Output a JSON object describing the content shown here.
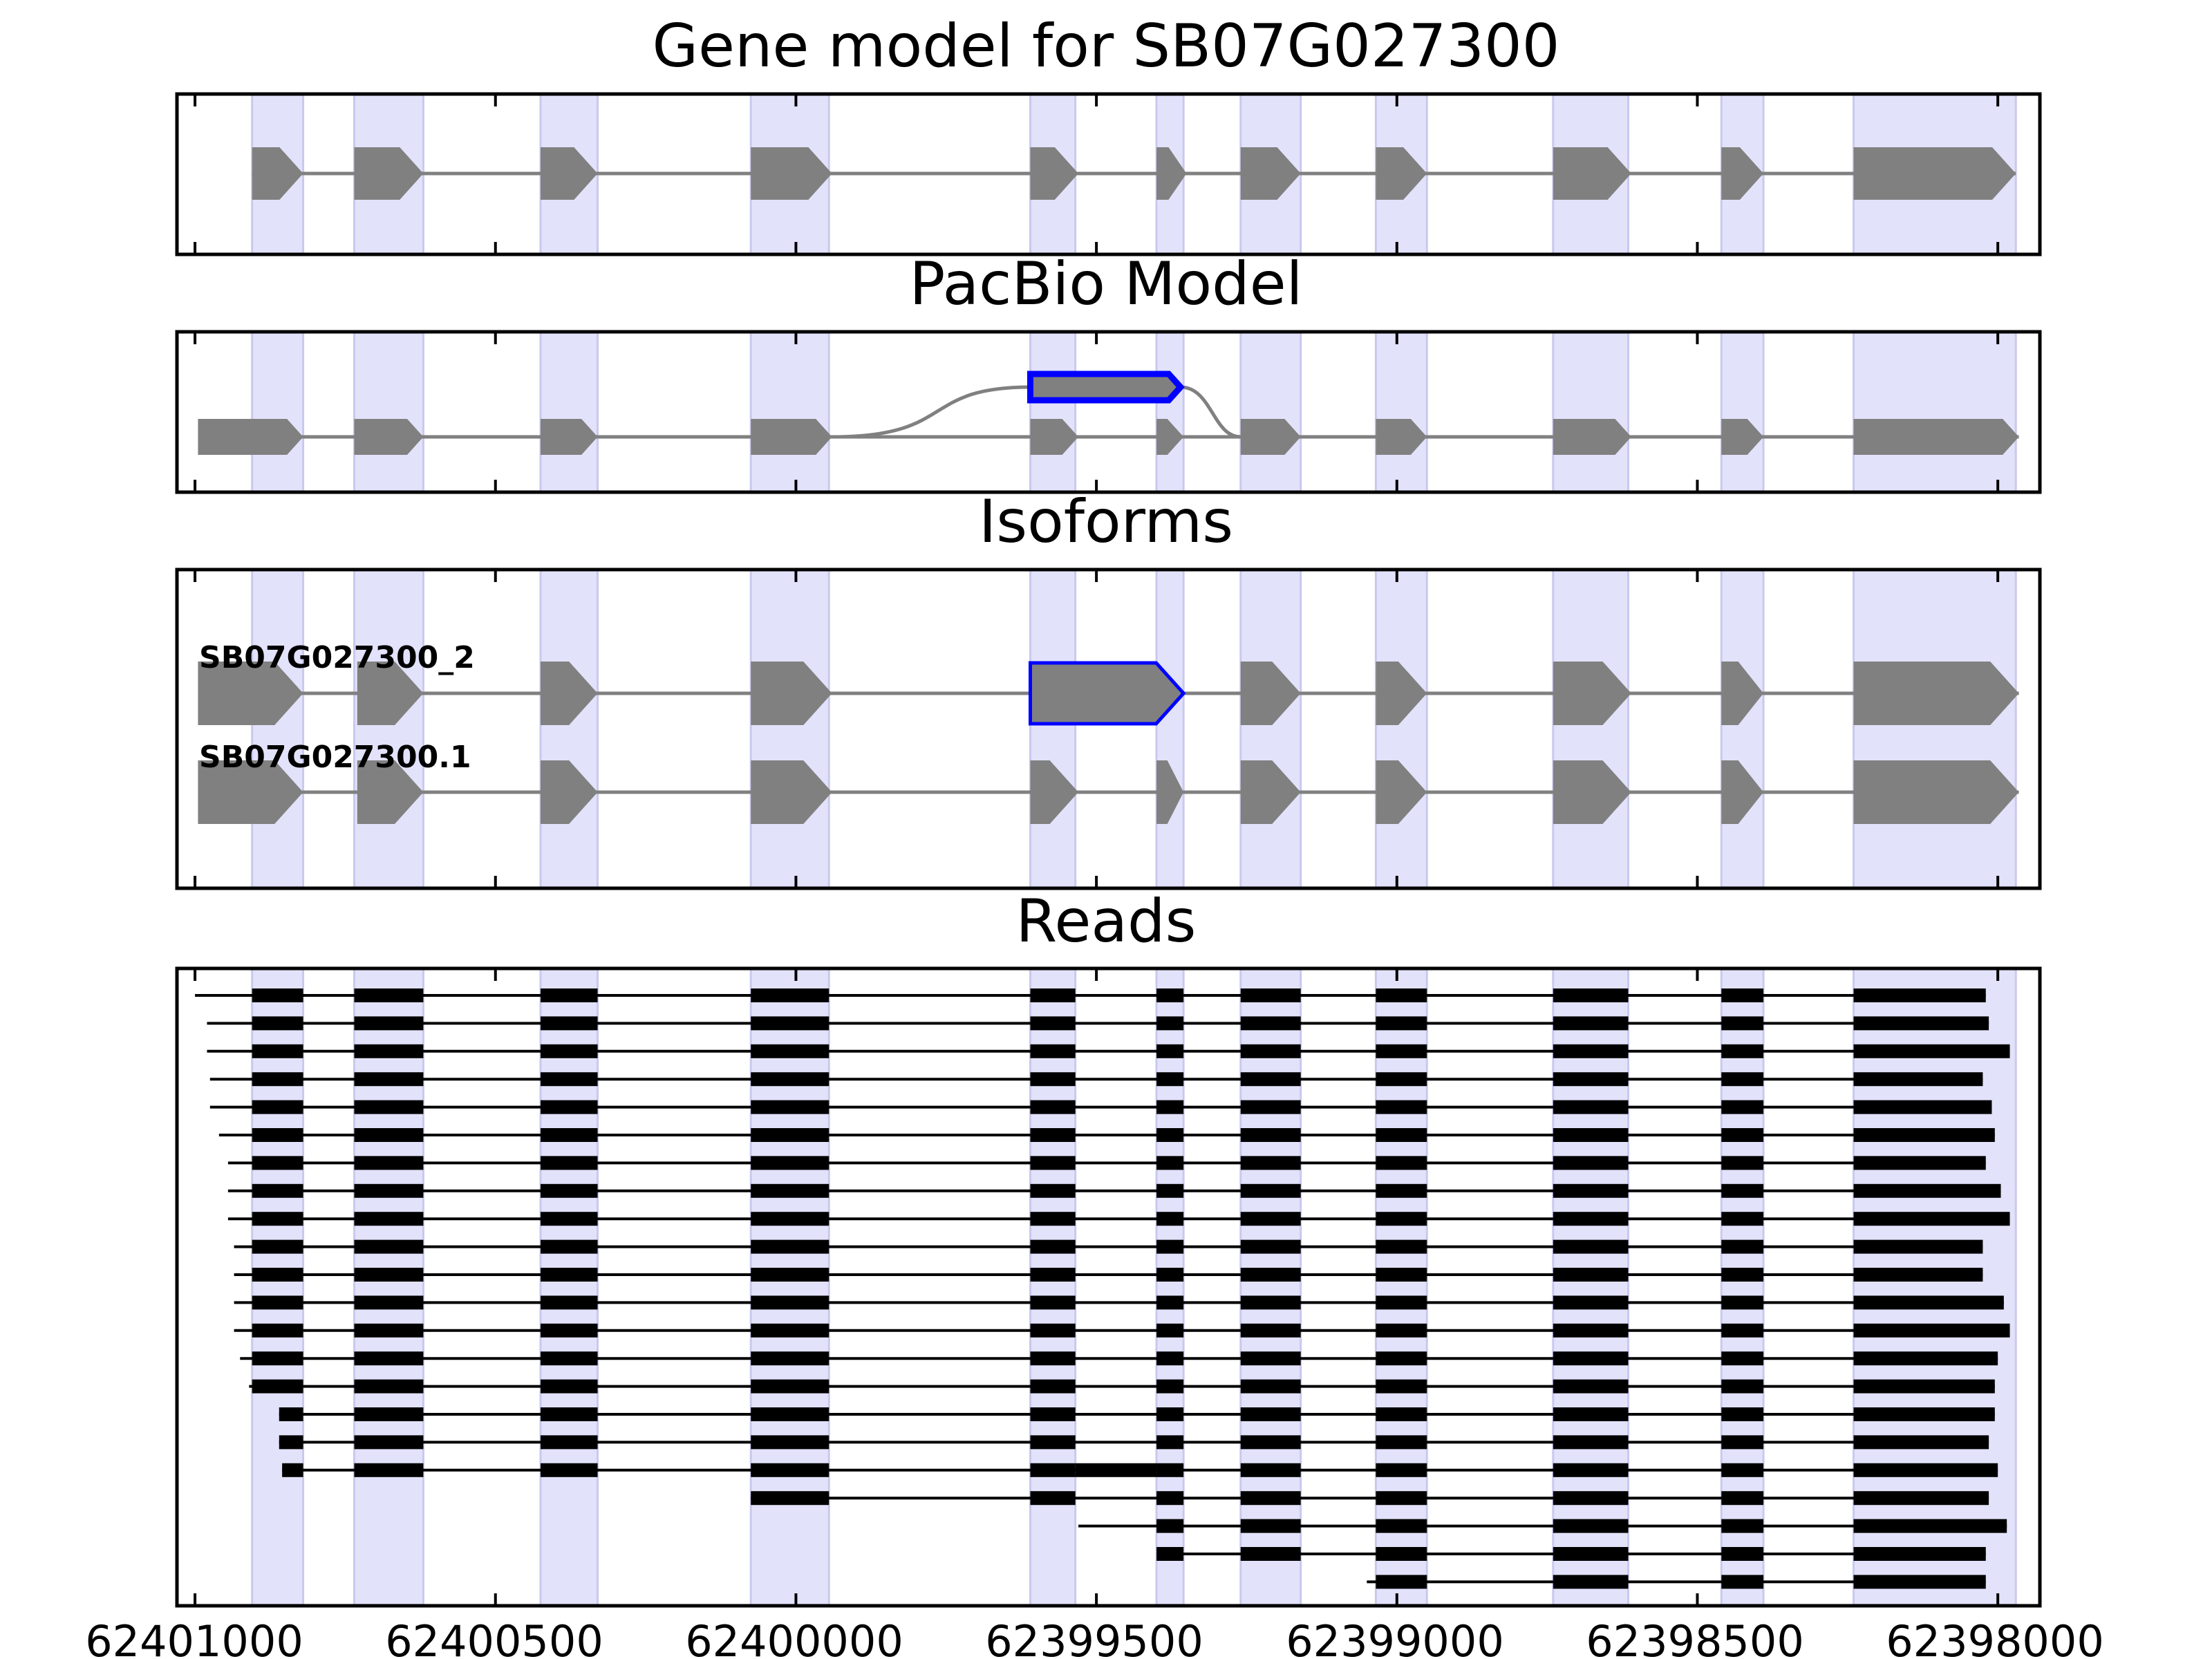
{
  "figure": {
    "panels": {
      "gene_model": {
        "title": "Gene model for SB07G027300"
      },
      "pacbio": {
        "title": "PacBio Model"
      },
      "isoforms": {
        "title": "Isoforms",
        "labels": [
          "SB07G027300_2",
          "SB07G027300.1"
        ]
      },
      "reads": {
        "title": "Reads"
      }
    },
    "x_ticks": [
      "62401000",
      "62400500",
      "62400000",
      "62399500",
      "62399000",
      "62398500",
      "62398000"
    ]
  },
  "colors": {
    "exon": "#808080",
    "intron": "#808080",
    "highlight_outline": "#0000ff",
    "shade": "#e2e2fb",
    "read": "#000000",
    "axis": "#000000"
  },
  "chart_data": {
    "type": "gene-structure",
    "orientation": "reversed",
    "xlim": [
      62401030,
      62397930
    ],
    "ticks": [
      62401000,
      62400500,
      62400000,
      62399500,
      62399000,
      62398500,
      62398000
    ],
    "gene_model_exons": [
      [
        62400905,
        62400820
      ],
      [
        62400735,
        62400620
      ],
      [
        62400425,
        62400330
      ],
      [
        62400075,
        62399940
      ],
      [
        62399610,
        62399530
      ],
      [
        62399400,
        62399350
      ],
      [
        62399260,
        62399160
      ],
      [
        62399035,
        62398950
      ],
      [
        62398740,
        62398610
      ],
      [
        62398460,
        62398390
      ],
      [
        62398240,
        62397970
      ]
    ],
    "pacbio_main_exons": [
      [
        62400995,
        62400820
      ],
      [
        62400735,
        62400620
      ],
      [
        62400425,
        62400330
      ],
      [
        62400075,
        62399940
      ],
      [
        62399610,
        62399530
      ],
      [
        62399400,
        62399355
      ],
      [
        62399260,
        62399160
      ],
      [
        62399035,
        62398950
      ],
      [
        62398740,
        62398610
      ],
      [
        62398460,
        62398390
      ],
      [
        62398240,
        62397965
      ]
    ],
    "pacbio_alt_exon": [
      62399610,
      62399360
    ],
    "isoforms": [
      {
        "name": "SB07G027300_2",
        "exons": [
          [
            62400995,
            62400820
          ],
          [
            62400730,
            62400620
          ],
          [
            62400425,
            62400330
          ],
          [
            62400075,
            62399940
          ],
          [
            62399610,
            62399355
          ],
          [
            62399260,
            62399160
          ],
          [
            62399035,
            62398950
          ],
          [
            62398740,
            62398610
          ],
          [
            62398460,
            62398390
          ],
          [
            62398240,
            62397965
          ]
        ]
      },
      {
        "name": "SB07G027300.1",
        "exons": [
          [
            62400995,
            62400820
          ],
          [
            62400730,
            62400620
          ],
          [
            62400425,
            62400330
          ],
          [
            62400075,
            62399940
          ],
          [
            62399610,
            62399530
          ],
          [
            62399400,
            62399355
          ],
          [
            62399260,
            62399160
          ],
          [
            62399035,
            62398950
          ],
          [
            62398740,
            62398610
          ],
          [
            62398460,
            62398390
          ],
          [
            62398240,
            62397965
          ]
        ]
      }
    ],
    "shaded_regions": [
      [
        62400905,
        62400820
      ],
      [
        62400735,
        62400620
      ],
      [
        62400425,
        62400330
      ],
      [
        62400075,
        62399945
      ],
      [
        62399610,
        62399535
      ],
      [
        62399400,
        62399355
      ],
      [
        62399260,
        62399160
      ],
      [
        62399035,
        62398950
      ],
      [
        62398740,
        62398615
      ],
      [
        62398460,
        62398390
      ],
      [
        62398240,
        62397970
      ]
    ],
    "reads": [
      {
        "start": 62401000,
        "end": 62398020
      },
      {
        "start": 62400980,
        "end": 62398015
      },
      {
        "start": 62400980,
        "end": 62397980
      },
      {
        "start": 62400975,
        "end": 62398025
      },
      {
        "start": 62400975,
        "end": 62398010
      },
      {
        "start": 62400960,
        "end": 62398005
      },
      {
        "start": 62400945,
        "end": 62398020
      },
      {
        "start": 62400945,
        "end": 62397995
      },
      {
        "start": 62400945,
        "end": 62397980
      },
      {
        "start": 62400935,
        "end": 62398025
      },
      {
        "start": 62400935,
        "end": 62398025
      },
      {
        "start": 62400935,
        "end": 62397990
      },
      {
        "start": 62400935,
        "end": 62397980
      },
      {
        "start": 62400925,
        "end": 62398000
      },
      {
        "start": 62400910,
        "end": 62398005
      },
      {
        "start": 62400860,
        "end": 62398005
      },
      {
        "start": 62400860,
        "end": 62398015
      },
      {
        "start": 62400855,
        "end": 62398000
      },
      {
        "start": 62400075,
        "end": 62398015
      },
      {
        "start": 62399530,
        "end": 62397985
      },
      {
        "start": 62399400,
        "end": 62398020
      },
      {
        "start": 62399050,
        "end": 62398020
      }
    ],
    "read_exons": [
      [
        62400905,
        62400820
      ],
      [
        62400735,
        62400620
      ],
      [
        62400425,
        62400330
      ],
      [
        62400075,
        62399945
      ],
      [
        62399610,
        62399535
      ],
      [
        62399400,
        62399355
      ],
      [
        62399260,
        62399160
      ],
      [
        62399035,
        62398950
      ],
      [
        62398740,
        62398615
      ],
      [
        62398460,
        62398390
      ],
      [
        62398240,
        62397970
      ]
    ],
    "read_retained_intron_row": 17,
    "read_retained_intron": [
      62399535,
      62399400
    ]
  }
}
